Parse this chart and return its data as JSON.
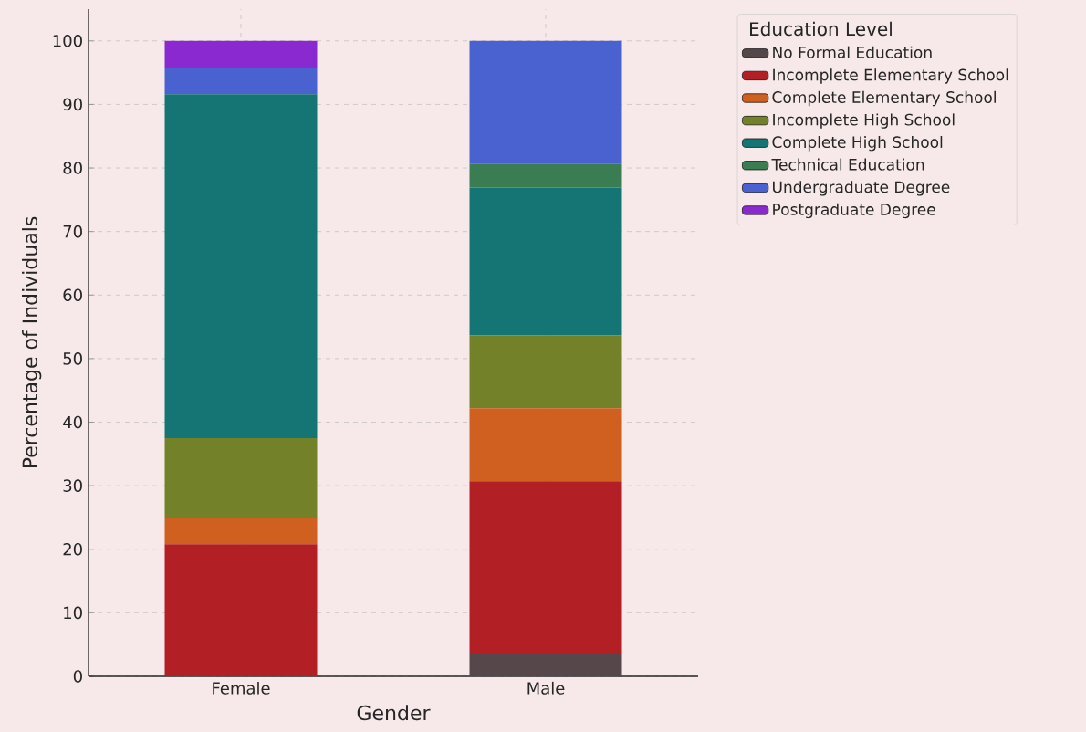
{
  "chart_data": {
    "type": "bar",
    "stacked": true,
    "xlabel": "Gender",
    "ylabel": "Percentage of Individuals",
    "legend_title": "Education Level",
    "categories": [
      "Female",
      "Male"
    ],
    "series": [
      {
        "name": "No Formal Education",
        "color": "#56474a",
        "values": [
          0,
          3.6
        ]
      },
      {
        "name": "Incomplete Elementary School",
        "color": "#b22025",
        "values": [
          20.8,
          27.1
        ]
      },
      {
        "name": "Complete Elementary School",
        "color": "#d06020",
        "values": [
          4.1,
          11.5
        ]
      },
      {
        "name": "Incomplete High School",
        "color": "#738228",
        "values": [
          12.6,
          11.5
        ]
      },
      {
        "name": "Complete High School",
        "color": "#157575",
        "values": [
          54.1,
          23.2
        ]
      },
      {
        "name": "Technical Education",
        "color": "#3a7d52",
        "values": [
          0,
          3.7
        ]
      },
      {
        "name": "Undergraduate Degree",
        "color": "#4a62cf",
        "values": [
          4.2,
          19.4
        ]
      },
      {
        "name": "Postgraduate Degree",
        "color": "#8b29d1",
        "values": [
          4.2,
          0
        ]
      }
    ],
    "ylim": [
      0,
      105
    ],
    "yticks": [
      0,
      10,
      20,
      30,
      40,
      50,
      60,
      70,
      80,
      90,
      100
    ],
    "grid": true,
    "legend": "top right"
  }
}
